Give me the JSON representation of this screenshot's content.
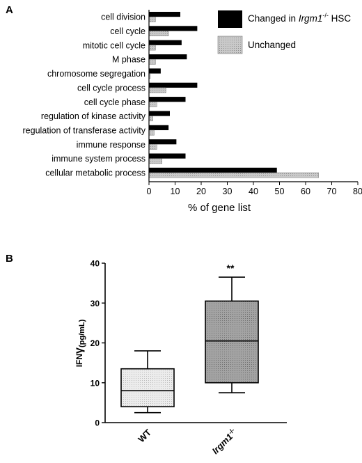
{
  "panels": {
    "a": "A",
    "b": "B"
  },
  "chart_data": [
    {
      "type": "bar",
      "orientation": "horizontal",
      "categories": [
        "cell division",
        "cell cycle",
        "mitotic cell cycle",
        "M phase",
        "chromosome segregation",
        "cell cycle process",
        "cell cycle phase",
        "regulation of kinase activity",
        "regulation of transferase activity",
        "immune response",
        "immune system process",
        "cellular metabolic process"
      ],
      "series": [
        {
          "name_prefix": "Changed in ",
          "name_italic": "Irgm1",
          "name_superscript": "-/-",
          "name_suffix": " HSC",
          "values": [
            12,
            18.5,
            12.5,
            14.5,
            4.5,
            18.5,
            14,
            8,
            7.5,
            10.5,
            14,
            49
          ]
        },
        {
          "name": "Unchanged",
          "values": [
            2.5,
            7.5,
            2.5,
            2.5,
            0.5,
            6.5,
            3,
            1.5,
            2,
            3,
            5,
            65
          ]
        }
      ],
      "colors": [
        "#000000",
        "#c0c0c0"
      ],
      "xlabel": "% of gene list",
      "xlim": [
        0,
        80
      ],
      "xticks": [
        "0",
        "10",
        "20",
        "30",
        "40",
        "50",
        "60",
        "70",
        "80"
      ],
      "grid": false,
      "legend_position": "top-right"
    },
    {
      "type": "boxplot",
      "categories": [
        "WT",
        "Irgm1-/-"
      ],
      "cat_wt": "WT",
      "cat_irgm_italic": "Irgm1",
      "cat_irgm_sup": "-/-",
      "boxes": [
        {
          "name": "WT",
          "whisker_low": 2.5,
          "q1": 4,
          "median": 8,
          "q3": 13.5,
          "whisker_high": 18,
          "color": "#e8e8e8"
        },
        {
          "name": "Irgm1-/-",
          "whisker_low": 7.5,
          "q1": 10,
          "median": 20.5,
          "q3": 30.5,
          "whisker_high": 36.5,
          "color": "#999999"
        }
      ],
      "ylabel_main": "IFN",
      "ylabel_gamma": "γ",
      "ylabel_unit": "(pg/mL)",
      "ylim": [
        0,
        40
      ],
      "yticks": [
        "0",
        "10",
        "20",
        "30",
        "40"
      ],
      "significance": "**"
    }
  ]
}
